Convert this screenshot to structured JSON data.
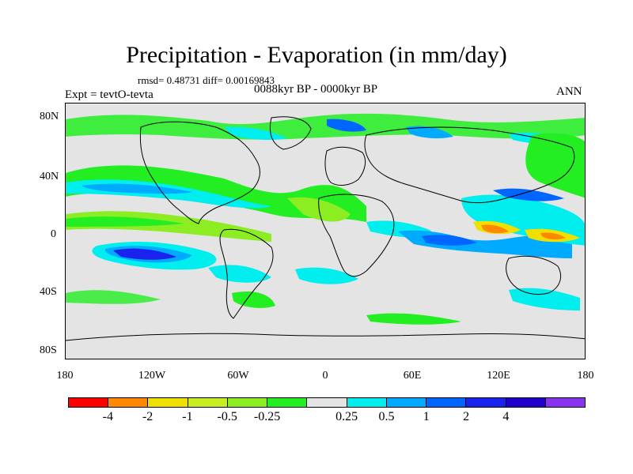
{
  "title": "Precipitation - Evaporation (in mm/day)",
  "stats": "rmsd= 0.48731 diff= 0.00169843",
  "period": "0088kyr BP - 0000kyr BP",
  "experiment": "Expt = tevtO-tevta",
  "season": "ANN",
  "map": {
    "lat_labels": [
      "80N",
      "40N",
      "0",
      "40S",
      "80S"
    ],
    "lon_labels": [
      "180",
      "120W",
      "60W",
      "0",
      "60E",
      "120E",
      "180"
    ],
    "background_color": "#e4e4e4",
    "coastline_color": "#000000"
  },
  "colorbar": {
    "colors": [
      "#ff0000",
      "#ff8800",
      "#f0e000",
      "#c8ee22",
      "#8cee22",
      "#22ee22",
      "#e4e4e4",
      "#00eeee",
      "#00aaff",
      "#0066ff",
      "#1a22ee",
      "#2200cc",
      "#8833ee"
    ],
    "labels": [
      "-4",
      "-2",
      "-1",
      "-0.5",
      "-0.25",
      "0.25",
      "0.5",
      "1",
      "2",
      "4"
    ]
  }
}
